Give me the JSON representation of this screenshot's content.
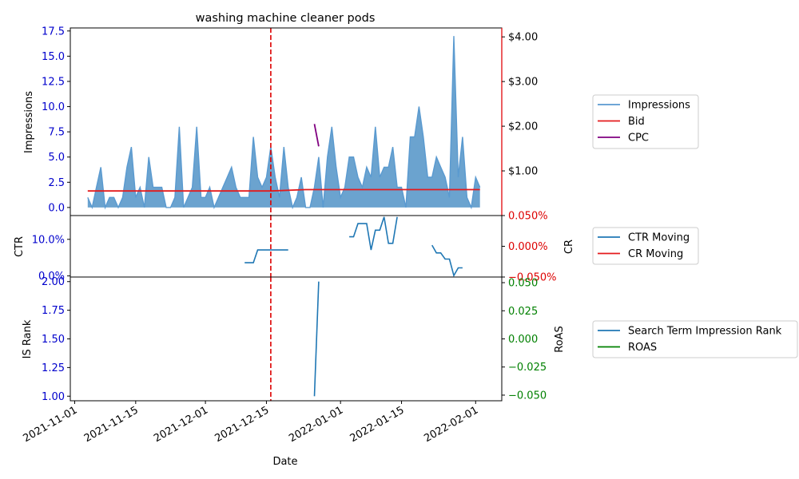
{
  "chart_data": [
    {
      "panel": "top",
      "type": "area",
      "title": "washing machine cleaner pods",
      "ylabel": "Impressions",
      "ylim": [
        -0.8,
        17.8
      ],
      "yticks": [
        "0.0",
        "2.5",
        "5.0",
        "7.5",
        "10.0",
        "12.5",
        "15.0",
        "17.5"
      ],
      "ytick_values": [
        0,
        2.5,
        5,
        7.5,
        10,
        12.5,
        15,
        17.5
      ],
      "right_ylim": [
        0,
        4.2
      ],
      "right_yticks": [
        "$1.00",
        "$2.00",
        "$3.00",
        "$4.00"
      ],
      "right_ytick_values": [
        1,
        2,
        3,
        4
      ],
      "series": [
        {
          "name": "Impressions",
          "x": [
            "2021-11-04",
            "2021-11-05",
            "2021-11-06",
            "2021-11-07",
            "2021-11-08",
            "2021-11-09",
            "2021-11-10",
            "2021-11-11",
            "2021-11-12",
            "2021-11-13",
            "2021-11-14",
            "2021-11-15",
            "2021-11-16",
            "2021-11-17",
            "2021-11-18",
            "2021-11-19",
            "2021-11-20",
            "2021-11-21",
            "2021-11-22",
            "2021-11-23",
            "2021-11-24",
            "2021-11-25",
            "2021-11-26",
            "2021-11-27",
            "2021-11-28",
            "2021-11-29",
            "2021-11-30",
            "2021-12-01",
            "2021-12-02",
            "2021-12-03",
            "2021-12-04",
            "2021-12-05",
            "2021-12-06",
            "2021-12-07",
            "2021-12-08",
            "2021-12-09",
            "2021-12-10",
            "2021-12-11",
            "2021-12-12",
            "2021-12-13",
            "2021-12-14",
            "2021-12-15",
            "2021-12-16",
            "2021-12-17",
            "2021-12-18",
            "2021-12-19",
            "2021-12-20",
            "2021-12-21",
            "2021-12-22",
            "2021-12-23",
            "2021-12-24",
            "2021-12-25",
            "2021-12-26",
            "2021-12-27",
            "2021-12-28",
            "2021-12-29",
            "2021-12-30",
            "2021-12-31",
            "2022-01-01",
            "2022-01-02",
            "2022-01-03",
            "2022-01-04",
            "2022-01-05",
            "2022-01-06",
            "2022-01-07",
            "2022-01-08",
            "2022-01-09",
            "2022-01-10",
            "2022-01-11",
            "2022-01-12",
            "2022-01-13",
            "2022-01-14",
            "2022-01-15",
            "2022-01-16",
            "2022-01-17",
            "2022-01-18",
            "2022-01-19",
            "2022-01-20",
            "2022-01-21",
            "2022-01-22",
            "2022-01-23",
            "2022-01-24",
            "2022-01-25",
            "2022-01-26",
            "2022-01-27",
            "2022-01-28",
            "2022-01-29",
            "2022-01-30",
            "2022-01-31",
            "2022-02-01",
            "2022-02-02"
          ],
          "values": [
            1,
            0,
            2,
            4,
            0,
            1,
            1,
            0,
            1,
            4,
            6,
            1,
            2,
            0,
            5,
            2,
            2,
            2,
            0,
            0,
            1,
            8,
            0,
            1,
            2,
            8,
            1,
            1,
            2,
            0,
            1,
            2,
            3,
            4,
            2,
            1,
            1,
            1,
            7,
            3,
            2,
            3,
            6,
            3,
            1,
            6,
            2,
            0,
            1,
            3,
            0,
            0,
            2,
            5,
            0,
            5,
            8,
            4,
            1,
            2,
            5,
            5,
            3,
            2,
            4,
            3,
            8,
            3,
            4,
            4,
            6,
            2,
            2,
            0,
            7,
            7,
            10,
            7,
            3,
            3,
            5,
            4,
            3,
            1,
            17,
            3,
            7,
            1,
            0,
            3,
            2
          ]
        },
        {
          "name": "Bid",
          "x": [
            "2021-11-04",
            "2021-12-16",
            "2021-12-24",
            "2022-02-02"
          ],
          "values": [
            0.55,
            0.55,
            0.58,
            0.58
          ]
        },
        {
          "name": "CPC",
          "x": [
            "2021-12-26",
            "2021-12-27"
          ],
          "values": [
            2.05,
            1.55
          ]
        }
      ],
      "annotations": [
        {
          "type": "vline",
          "x": "2021-12-16",
          "style": "dashed",
          "color": "#dd0000"
        }
      ]
    },
    {
      "panel": "middle",
      "type": "line",
      "ylabel": "CTR",
      "ylim": [
        -0.3,
        16.5
      ],
      "yticks": [
        "0.0%",
        "10.0%"
      ],
      "ytick_values": [
        0,
        10
      ],
      "right_ylabel": "CR",
      "right_ylim": [
        -0.05,
        0.05
      ],
      "right_yticks": [
        "−0.050%",
        "0.000%",
        "0.050%"
      ],
      "right_ytick_values": [
        -0.05,
        0,
        0.05
      ],
      "series": [
        {
          "name": "CTR Moving",
          "segments": [
            {
              "x": [
                "2021-12-10",
                "2021-12-11",
                "2021-12-12",
                "2021-12-13",
                "2021-12-14",
                "2021-12-15",
                "2021-12-16",
                "2021-12-17",
                "2021-12-18",
                "2021-12-19",
                "2021-12-20"
              ],
              "values": [
                3.6,
                3.6,
                3.6,
                7.1,
                7.1,
                7.1,
                7.1,
                7.1,
                7.1,
                7.1,
                7.1
              ]
            },
            {
              "x": [
                "2022-01-03",
                "2022-01-04",
                "2022-01-05",
                "2022-01-06",
                "2022-01-07",
                "2022-01-08",
                "2022-01-09",
                "2022-01-10",
                "2022-01-11",
                "2022-01-12",
                "2022-01-13",
                "2022-01-14"
              ],
              "values": [
                10.7,
                10.7,
                14.3,
                14.3,
                14.3,
                7.1,
                12.5,
                12.5,
                16.1,
                8.9,
                8.9,
                16.1
              ]
            },
            {
              "x": [
                "2022-01-22",
                "2022-01-23",
                "2022-01-24",
                "2022-01-25",
                "2022-01-26",
                "2022-01-27",
                "2022-01-28",
                "2022-01-29"
              ],
              "values": [
                8.4,
                6.3,
                6.3,
                4.6,
                4.6,
                0.1,
                2.2,
                2.2
              ]
            }
          ]
        },
        {
          "name": "CR Moving",
          "values": []
        }
      ],
      "annotations": [
        {
          "type": "vline",
          "x": "2021-12-16",
          "style": "dashed",
          "color": "#dd0000"
        }
      ]
    },
    {
      "panel": "bottom",
      "type": "line",
      "ylabel": "IS Rank",
      "xlabel": "Date",
      "ylim": [
        0.96,
        2.04
      ],
      "yticks": [
        "1.00",
        "1.25",
        "1.50",
        "1.75",
        "2.00"
      ],
      "ytick_values": [
        1,
        1.25,
        1.5,
        1.75,
        2
      ],
      "right_ylabel": "RoAS",
      "right_ylim": [
        -0.055,
        0.055
      ],
      "right_yticks": [
        "−0.050",
        "−0.025",
        "0.000",
        "0.025",
        "0.050"
      ],
      "right_ytick_values": [
        -0.05,
        -0.025,
        0,
        0.025,
        0.05
      ],
      "xticks": [
        "2021-11-01",
        "2021-11-15",
        "2021-12-01",
        "2021-12-15",
        "2022-01-01",
        "2022-01-15",
        "2022-02-01"
      ],
      "xlim": [
        "2021-10-31",
        "2022-02-07"
      ],
      "series": [
        {
          "name": "Search Term Impression Rank",
          "x": [
            "2021-12-26",
            "2021-12-27"
          ],
          "values": [
            1.0,
            2.0
          ]
        },
        {
          "name": "ROAS",
          "values": []
        }
      ],
      "annotations": [
        {
          "type": "vline",
          "x": "2021-12-16",
          "style": "dashed",
          "color": "#dd0000"
        }
      ]
    }
  ],
  "colors": {
    "impressions": "#4a8fc4",
    "impressions_line": "#5a9ad0",
    "bid": "#e41a1c",
    "cpc": "#800080",
    "ctr": "#1f77b4",
    "cr": "#e41a1c",
    "is_rank": "#1f77b4",
    "roas": "#008000",
    "left_axis_ticks": "#0000cc",
    "cr_ticks": "#dd0000",
    "roas_ticks": "#008000",
    "vline": "#dd0000"
  },
  "legends": [
    {
      "panel": "top",
      "placement": "right",
      "items": [
        {
          "label": "Impressions",
          "color": "#5a9ad0"
        },
        {
          "label": "Bid",
          "color": "#e41a1c"
        },
        {
          "label": "CPC",
          "color": "#800080"
        }
      ]
    },
    {
      "panel": "middle",
      "placement": "right",
      "items": [
        {
          "label": "CTR Moving",
          "color": "#1f77b4"
        },
        {
          "label": "CR Moving",
          "color": "#e41a1c"
        }
      ]
    },
    {
      "panel": "bottom",
      "placement": "right",
      "items": [
        {
          "label": "Search Term Impression Rank",
          "color": "#1f77b4"
        },
        {
          "label": "ROAS",
          "color": "#008000"
        }
      ]
    }
  ]
}
